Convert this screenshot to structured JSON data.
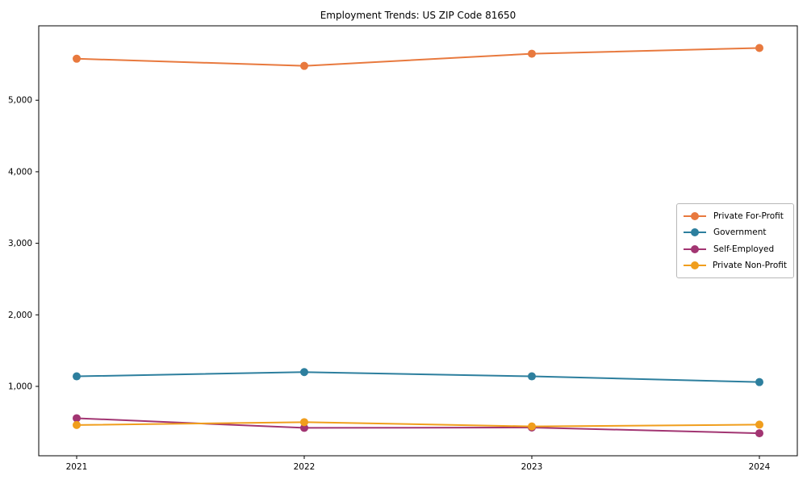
{
  "chart_data": {
    "type": "line",
    "title": "Employment Trends: US ZIP Code 81650",
    "xlabel": "",
    "ylabel": "",
    "x": [
      2021,
      2022,
      2023,
      2024
    ],
    "x_tick_labels": [
      "2021",
      "2022",
      "2023",
      "2024"
    ],
    "y_ticks": [
      1000,
      2000,
      3000,
      4000,
      5000
    ],
    "y_tick_labels": [
      "1,000",
      "2,000",
      "3,000",
      "4,000",
      "5,000"
    ],
    "ylim": [
      30,
      6040
    ],
    "grid": false,
    "legend_position": "middle-right",
    "marker": "circle",
    "axis_color": "#000000",
    "legend_border_color": "#b8b8b8",
    "series": [
      {
        "name": "Private For-Profit",
        "color": "#e8793e",
        "values": [
          5580,
          5480,
          5650,
          5730
        ]
      },
      {
        "name": "Government",
        "color": "#2d7f9e",
        "values": [
          1140,
          1200,
          1140,
          1060
        ]
      },
      {
        "name": "Self-Employed",
        "color": "#a23572",
        "values": [
          555,
          420,
          425,
          345
        ]
      },
      {
        "name": "Private Non-Profit",
        "color": "#f09e1d",
        "values": [
          460,
          500,
          440,
          465
        ]
      }
    ]
  }
}
